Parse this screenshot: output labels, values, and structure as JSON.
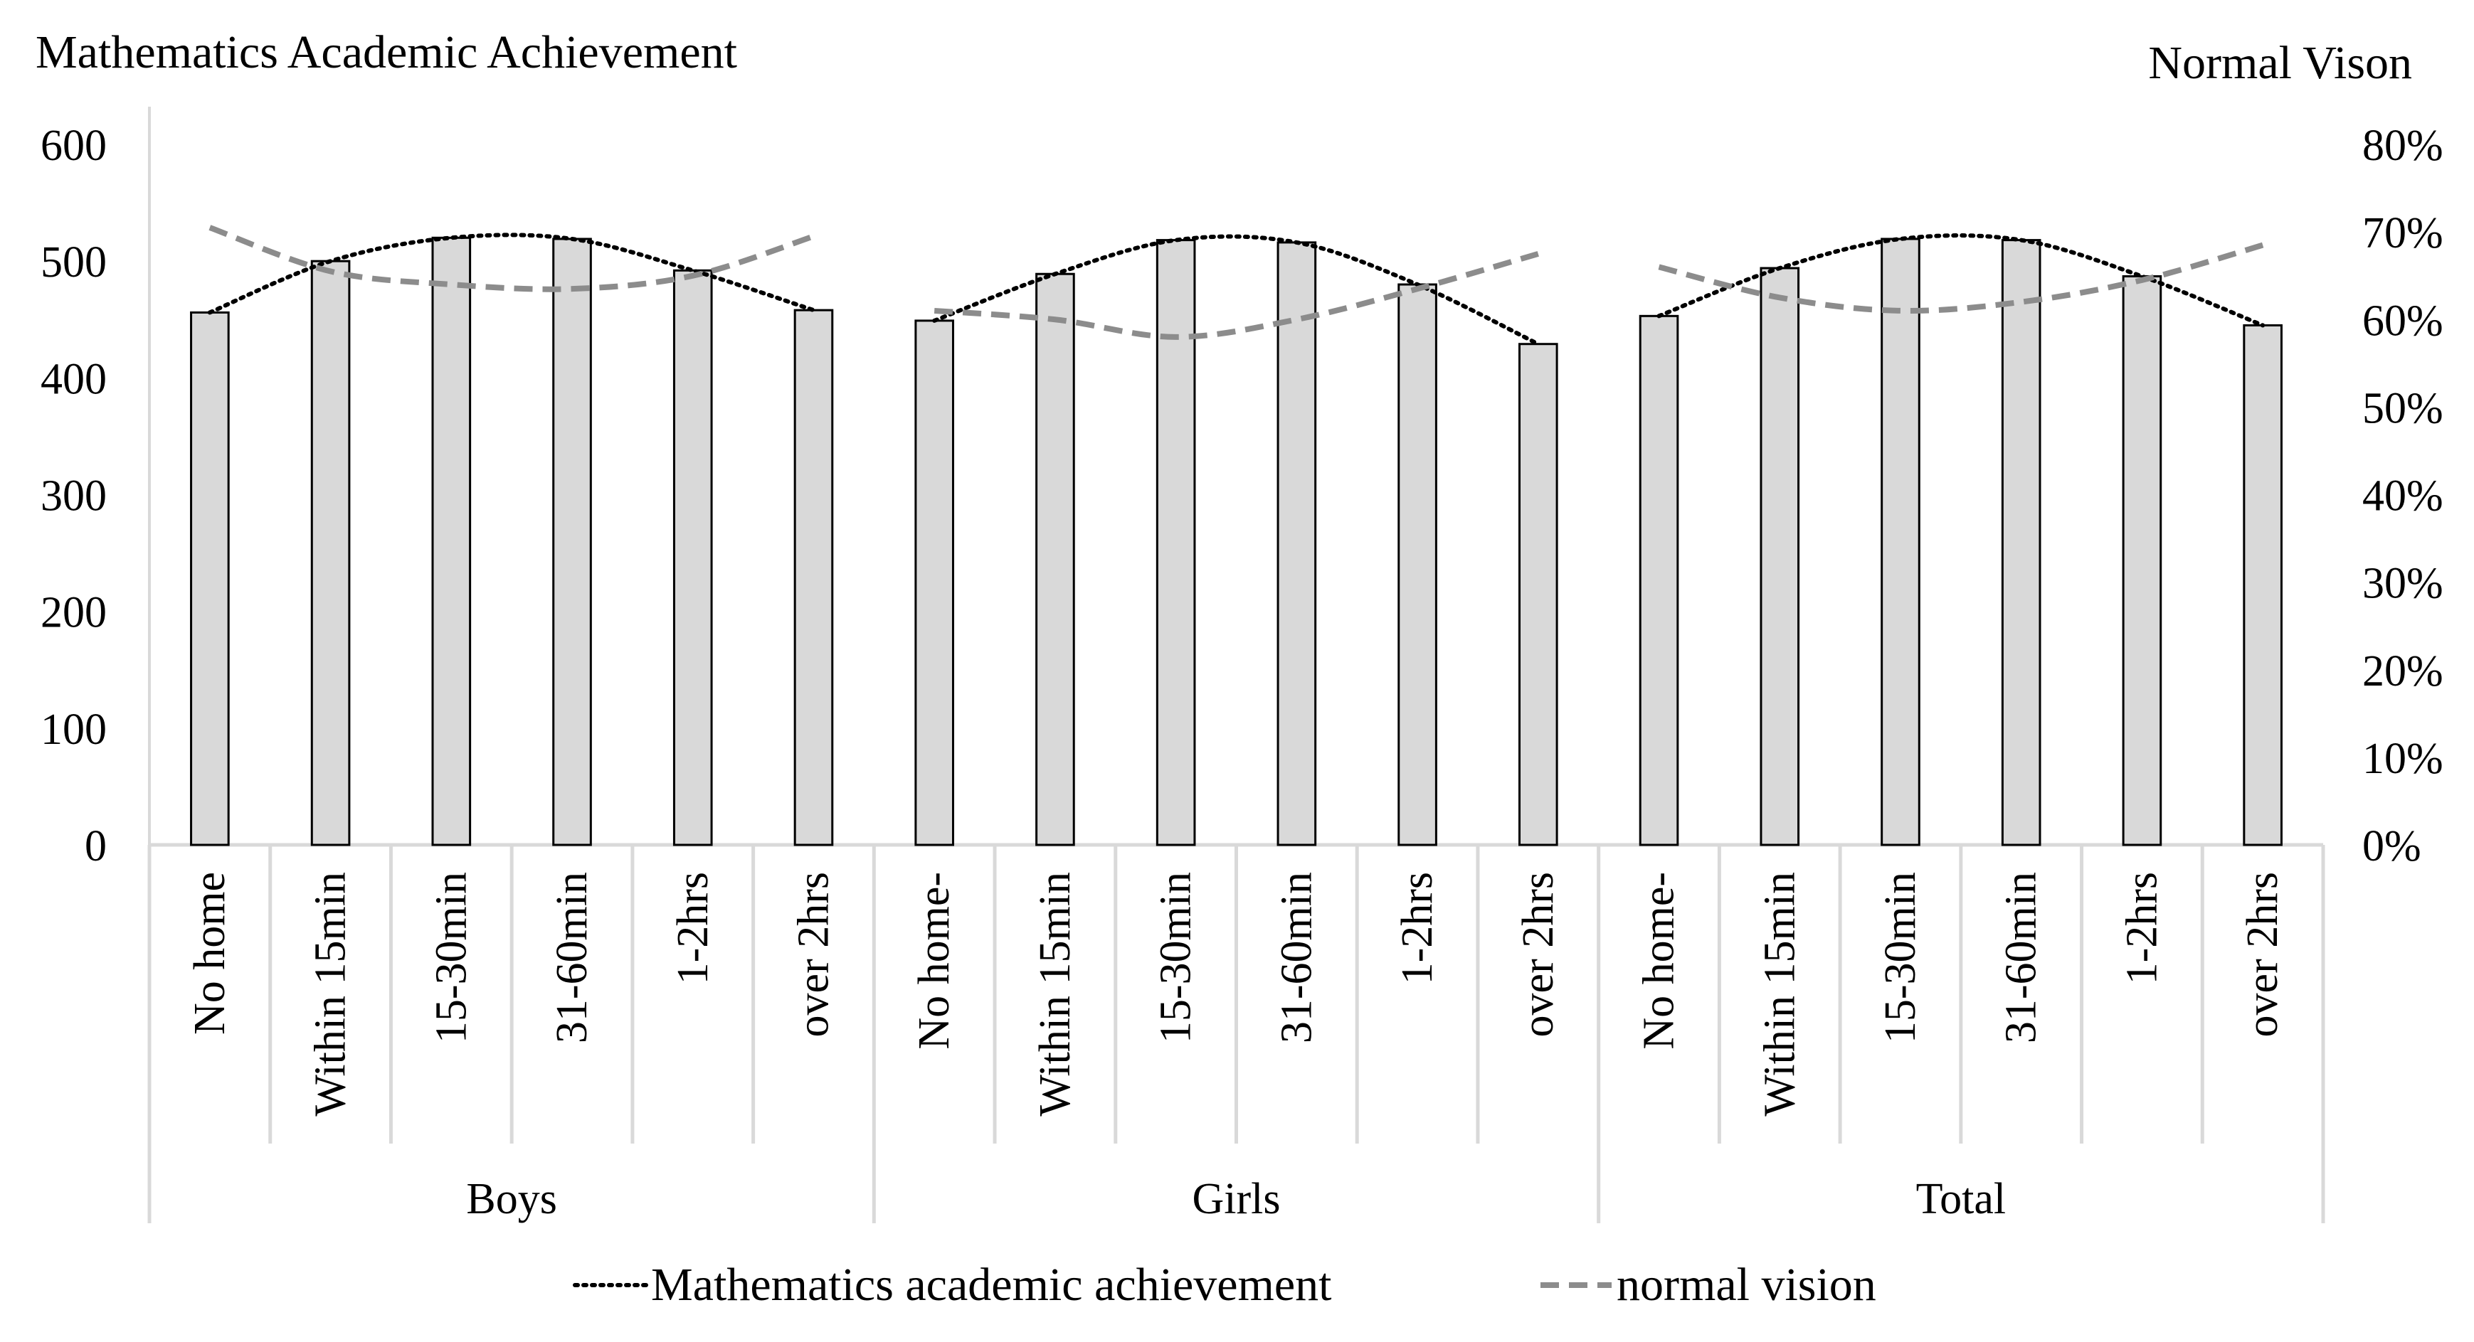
{
  "chart_data": {
    "type": "bar",
    "title_left": "Mathematics Academic Achievement",
    "title_right": "Normal Vison",
    "groups": [
      {
        "name": "Boys",
        "categories": [
          "No home",
          "Within 15min",
          "15-30min",
          "31-60min",
          "1-2hrs",
          "over 2hrs"
        ]
      },
      {
        "name": "Girls",
        "categories": [
          "No home-",
          "Within 15min",
          "15-30min",
          "31-60min",
          "1-2hrs",
          "over 2hrs"
        ]
      },
      {
        "name": "Total",
        "categories": [
          "No home-",
          "Within 15min",
          "15-30min",
          "31-60min",
          "1-2hrs",
          "over 2hrs"
        ]
      }
    ],
    "series": [
      {
        "name": "Mathematics academic achievement",
        "kind": "bar+dotted-trend",
        "axis": "left",
        "values": [
          456,
          500,
          520,
          519,
          492,
          458,
          449,
          489,
          518,
          516,
          480,
          429,
          453,
          494,
          519,
          518,
          487,
          445
        ]
      },
      {
        "name": "normal vision",
        "kind": "dashed-line",
        "axis": "right",
        "values": [
          70.5,
          65.5,
          64.0,
          63.5,
          65.0,
          69.5,
          61.0,
          60.0,
          58.0,
          60.0,
          63.5,
          67.5,
          66.0,
          62.5,
          61.0,
          62.0,
          64.5,
          68.5
        ]
      }
    ],
    "y_left": {
      "min": 0,
      "max": 600,
      "ticks": [
        "0",
        "100",
        "200",
        "300",
        "400",
        "500",
        "600"
      ]
    },
    "y_right": {
      "min": 0,
      "max": 80,
      "ticks": [
        "0%",
        "10%",
        "20%",
        "30%",
        "40%",
        "50%",
        "60%",
        "70%",
        "80%"
      ]
    },
    "legend": {
      "position": "bottom",
      "entries": [
        "Mathematics academic achievement",
        "normal vision"
      ]
    },
    "colors": {
      "bar_fill": "#d9d9d9",
      "bar_stroke": "#000000",
      "dotted_line": "#000000",
      "dashed_line": "#8c8c8c",
      "axis_line": "#d9d9d9"
    }
  }
}
